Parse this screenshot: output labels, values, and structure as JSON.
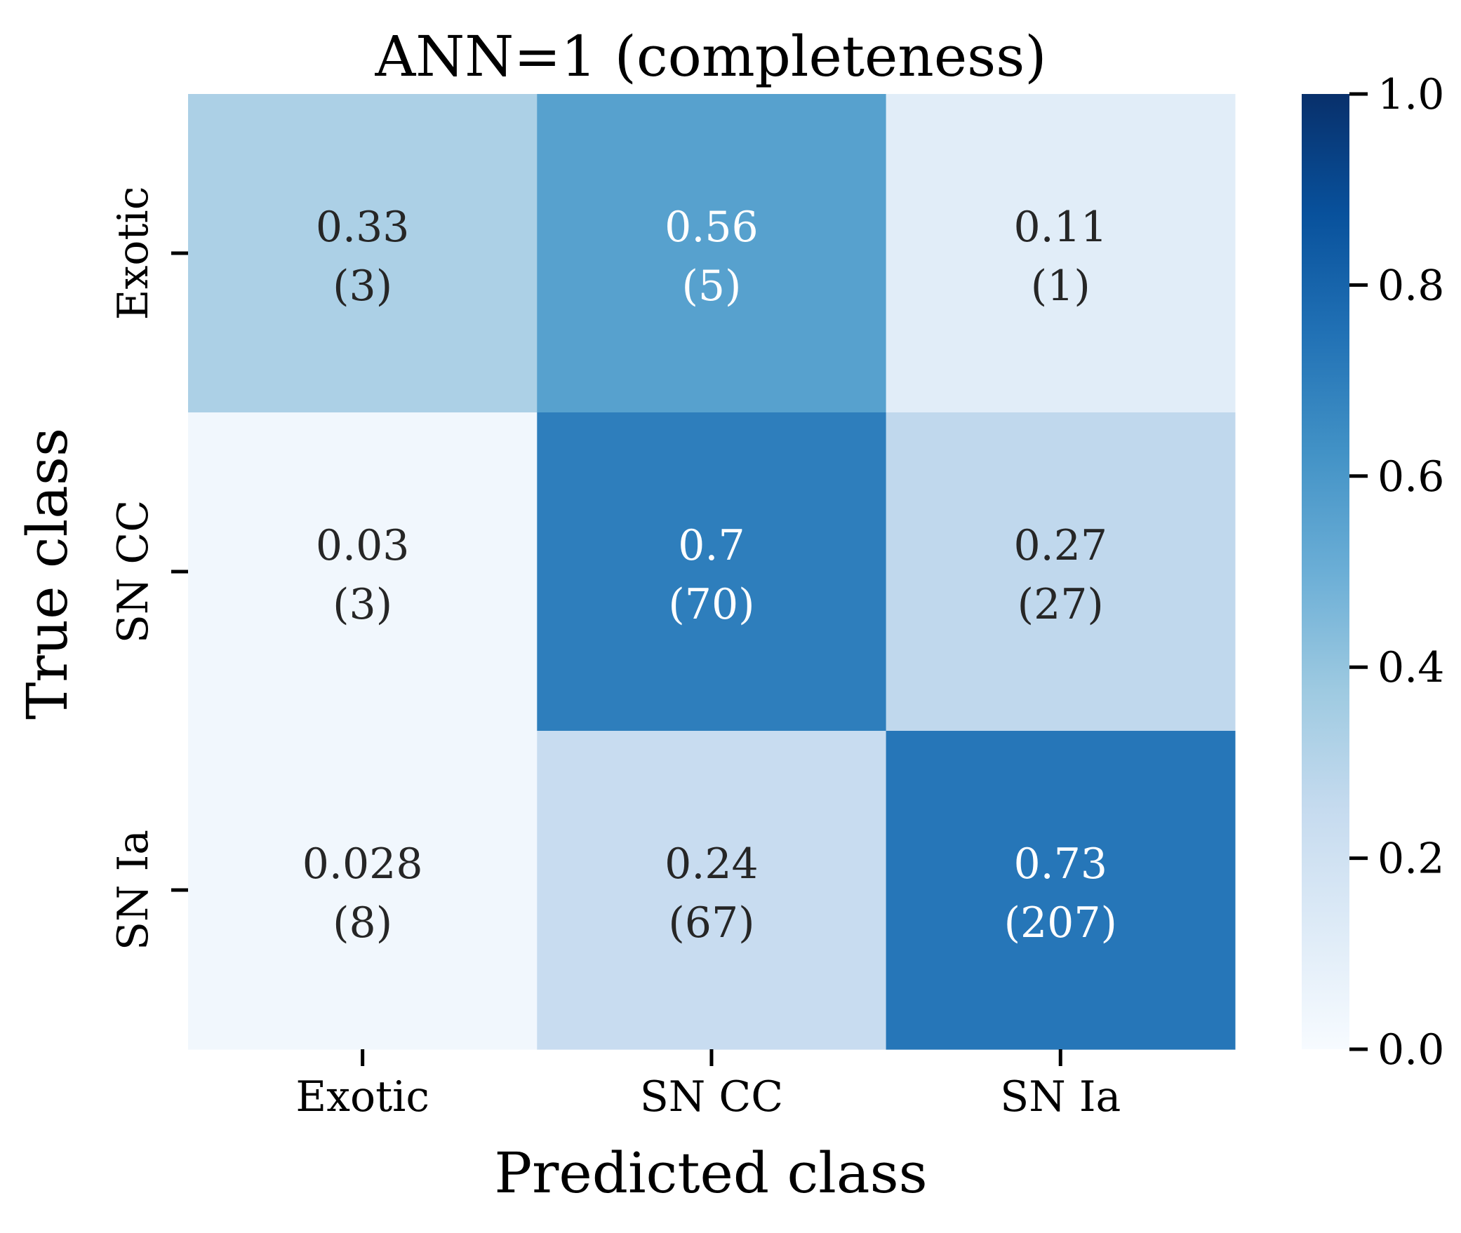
{
  "chart_data": {
    "type": "heatmap",
    "title": "ANN=1 (completeness)",
    "xlabel": "Predicted class",
    "ylabel": "True class",
    "x_categories": [
      "Exotic",
      "SN CC",
      "SN Ia"
    ],
    "y_categories": [
      "Exotic",
      "SN CC",
      "SN Ia"
    ],
    "values": [
      [
        0.33,
        0.56,
        0.11
      ],
      [
        0.03,
        0.7,
        0.27
      ],
      [
        0.028,
        0.24,
        0.73
      ]
    ],
    "value_labels": [
      [
        "0.33",
        "0.56",
        "0.11"
      ],
      [
        "0.03",
        "0.7",
        "0.27"
      ],
      [
        "0.028",
        "0.24",
        "0.73"
      ]
    ],
    "counts": [
      [
        3,
        5,
        1
      ],
      [
        3,
        70,
        27
      ],
      [
        8,
        67,
        207
      ]
    ],
    "count_labels": [
      [
        "(3)",
        "(5)",
        "(1)"
      ],
      [
        "(3)",
        "(70)",
        "(27)"
      ],
      [
        "(8)",
        "(67)",
        "(207)"
      ]
    ],
    "colormap": "Blues",
    "colorbar": {
      "range": [
        0.0,
        1.0
      ],
      "ticks": [
        0.0,
        0.2,
        0.4,
        0.6,
        0.8,
        1.0
      ],
      "tick_labels": [
        "0.0",
        "0.2",
        "0.4",
        "0.6",
        "0.8",
        "1.0"
      ],
      "colors": [
        "#f7fbff",
        "#deebf7",
        "#c6dbef",
        "#9ecae1",
        "#6baed6",
        "#4292c6",
        "#2171b5",
        "#08519c",
        "#08306b"
      ]
    },
    "grid": false,
    "legend": "colorbar-right"
  }
}
